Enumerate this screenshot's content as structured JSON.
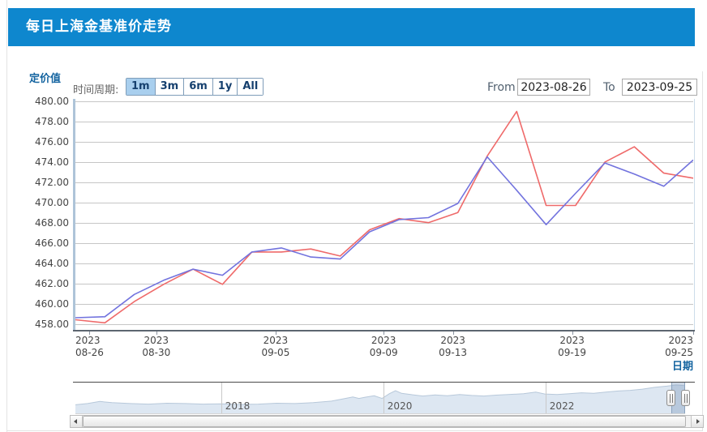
{
  "panel": {
    "title": "每日上海金基准价走势"
  },
  "colors": {
    "header_bg": "#0e87ce",
    "axis_title_blue": "#1464a0",
    "period_selected_bg": "#a9cfee",
    "line_red": "#ef6a6a",
    "line_blue": "#7273de"
  },
  "controls": {
    "period_label": "时间周期:",
    "periods": [
      {
        "label": "1m",
        "selected": true
      },
      {
        "label": "3m",
        "selected": false
      },
      {
        "label": "6m",
        "selected": false
      },
      {
        "label": "1y",
        "selected": false
      },
      {
        "label": "All",
        "selected": false
      }
    ],
    "from_label": "From",
    "from_value": "2023-08-26",
    "to_label": "To",
    "to_value": "2023-09-25"
  },
  "chart_data": {
    "type": "line",
    "title": "每日上海金基准价走势",
    "ylabel": "定价值",
    "xlabel": "日期",
    "ylim": [
      458,
      480
    ],
    "grid": true,
    "legend": "none",
    "y_ticks": [
      "480.00",
      "478.00",
      "476.00",
      "474.00",
      "472.00",
      "470.00",
      "468.00",
      "466.00",
      "464.00",
      "462.00",
      "460.00",
      "458.00"
    ],
    "x_ticks": [
      {
        "year": "2023",
        "date": "08-26",
        "pos": 0.022
      },
      {
        "year": "2023",
        "date": "08-30",
        "pos": 0.131
      },
      {
        "year": "2023",
        "date": "09-05",
        "pos": 0.324
      },
      {
        "year": "2023",
        "date": "09-09",
        "pos": 0.499
      },
      {
        "year": "2023",
        "date": "09-13",
        "pos": 0.611
      },
      {
        "year": "2023",
        "date": "09-19",
        "pos": 0.804
      },
      {
        "year": "2023",
        "date": "09-25",
        "pos": 1.0
      }
    ],
    "series": [
      {
        "name": "benchmark-price-red",
        "color": "#ef6a6a",
        "values": [
          458.4,
          458.1,
          460.2,
          461.9,
          463.4,
          461.9,
          465.1,
          465.1,
          465.4,
          464.7,
          467.3,
          468.4,
          468.0,
          469.0,
          474.6,
          479.0,
          469.7,
          469.7,
          474.0,
          475.5,
          472.9,
          472.4
        ]
      },
      {
        "name": "benchmark-price-blue",
        "color": "#7273de",
        "values": [
          458.6,
          458.7,
          460.9,
          462.3,
          463.4,
          462.8,
          465.1,
          465.5,
          464.6,
          464.4,
          467.1,
          468.3,
          468.5,
          469.9,
          474.5,
          471.2,
          467.8,
          470.9,
          473.9,
          472.8,
          471.6,
          474.2
        ]
      }
    ],
    "navigator": {
      "year_labels": [
        {
          "text": "2018",
          "pos": 0.239
        },
        {
          "text": "2020",
          "pos": 0.505
        },
        {
          "text": "2022",
          "pos": 0.771
        }
      ],
      "area_color": "#dde7f2",
      "line_color": "#b7c8da",
      "selection": [
        0.977,
        1.0
      ],
      "profile": [
        [
          0,
          0.26
        ],
        [
          0.02,
          0.3
        ],
        [
          0.04,
          0.37
        ],
        [
          0.06,
          0.33
        ],
        [
          0.09,
          0.3
        ],
        [
          0.12,
          0.28
        ],
        [
          0.15,
          0.31
        ],
        [
          0.18,
          0.3
        ],
        [
          0.21,
          0.28
        ],
        [
          0.24,
          0.29
        ],
        [
          0.27,
          0.27
        ],
        [
          0.3,
          0.28
        ],
        [
          0.33,
          0.31
        ],
        [
          0.36,
          0.3
        ],
        [
          0.39,
          0.33
        ],
        [
          0.42,
          0.38
        ],
        [
          0.44,
          0.46
        ],
        [
          0.455,
          0.52
        ],
        [
          0.465,
          0.47
        ],
        [
          0.475,
          0.51
        ],
        [
          0.49,
          0.56
        ],
        [
          0.503,
          0.47
        ],
        [
          0.515,
          0.63
        ],
        [
          0.525,
          0.73
        ],
        [
          0.535,
          0.64
        ],
        [
          0.55,
          0.6
        ],
        [
          0.57,
          0.55
        ],
        [
          0.59,
          0.59
        ],
        [
          0.61,
          0.56
        ],
        [
          0.63,
          0.6
        ],
        [
          0.65,
          0.57
        ],
        [
          0.67,
          0.55
        ],
        [
          0.69,
          0.58
        ],
        [
          0.71,
          0.6
        ],
        [
          0.735,
          0.63
        ],
        [
          0.755,
          0.68
        ],
        [
          0.77,
          0.62
        ],
        [
          0.79,
          0.6
        ],
        [
          0.81,
          0.63
        ],
        [
          0.83,
          0.66
        ],
        [
          0.85,
          0.64
        ],
        [
          0.87,
          0.68
        ],
        [
          0.89,
          0.72
        ],
        [
          0.91,
          0.74
        ],
        [
          0.93,
          0.78
        ],
        [
          0.95,
          0.84
        ],
        [
          0.97,
          0.88
        ],
        [
          0.985,
          0.92
        ],
        [
          1,
          0.9
        ]
      ]
    }
  }
}
